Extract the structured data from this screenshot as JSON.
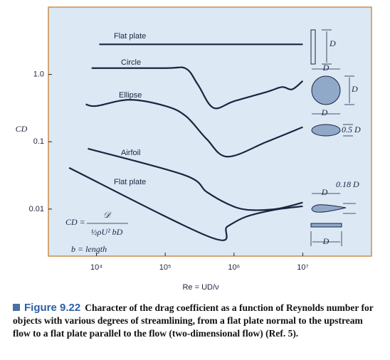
{
  "chart_data": {
    "type": "line",
    "x_label": "Re = UD/ν",
    "y_label": "CD",
    "log_x": true,
    "log_y": true,
    "xlim": [
      2000,
      100000000
    ],
    "ylim": [
      0.002,
      10
    ],
    "xticks": [
      {
        "value": 10000,
        "label": "10⁴"
      },
      {
        "value": 100000,
        "label": "10⁵"
      },
      {
        "value": 1000000,
        "label": "10⁶"
      },
      {
        "value": 10000000,
        "label": "10⁷"
      }
    ],
    "yticks": [
      {
        "value": 1,
        "label": "1.0"
      },
      0.1,
      0.01
    ],
    "series": [
      {
        "name": "Flat plate",
        "color": "#1c2340",
        "x": [
          11000,
          10000000
        ],
        "values": [
          2.8,
          2.8
        ]
      },
      {
        "name": "Circle",
        "color": "#1c2340",
        "x": [
          8500,
          100000,
          200000,
          300000,
          500000,
          1000000,
          3000000,
          5000000,
          7000000,
          10000000
        ],
        "values": [
          1.24,
          1.24,
          1.22,
          0.7,
          0.32,
          0.4,
          0.55,
          0.65,
          0.6,
          0.8
        ]
      },
      {
        "name": "Ellipse",
        "color": "#1c2340",
        "x": [
          7000,
          10000,
          30000,
          100000,
          200000,
          400000,
          800000,
          3000000,
          10000000
        ],
        "values": [
          0.36,
          0.34,
          0.42,
          0.34,
          0.24,
          0.11,
          0.06,
          0.1,
          0.165
        ]
      },
      {
        "name": "Airfoil",
        "color": "#1c2340",
        "x": [
          7500,
          190000,
          400000,
          800000,
          1500000,
          4000000,
          10000000
        ],
        "values": [
          0.079,
          0.032,
          0.018,
          0.012,
          0.0098,
          0.01,
          0.0125
        ]
      },
      {
        "name": "Flat plate",
        "color": "#1c2340",
        "x": [
          4000,
          460000,
          800000,
          1500000,
          4000000,
          10000000
        ],
        "values": [
          0.041,
          0.0038,
          0.0055,
          0.0077,
          0.0098,
          0.011
        ]
      }
    ],
    "annotations": [
      "CD =",
      "𝒟",
      "½ρU² bD",
      "b = length"
    ],
    "shape_labels": [
      "D",
      "D",
      "D",
      "D",
      "0.5 D",
      "0.18 D",
      "D",
      "D"
    ],
    "caption": {
      "figure": "Figure 9.22",
      "text": "Character of the drag coefficient as a function of Reynolds number for objects with various degrees of streamlining, from a flat plate normal to the upstream flow to a flat plate parallel to the flow (two-dimensional flow) (Ref. 5)."
    }
  }
}
